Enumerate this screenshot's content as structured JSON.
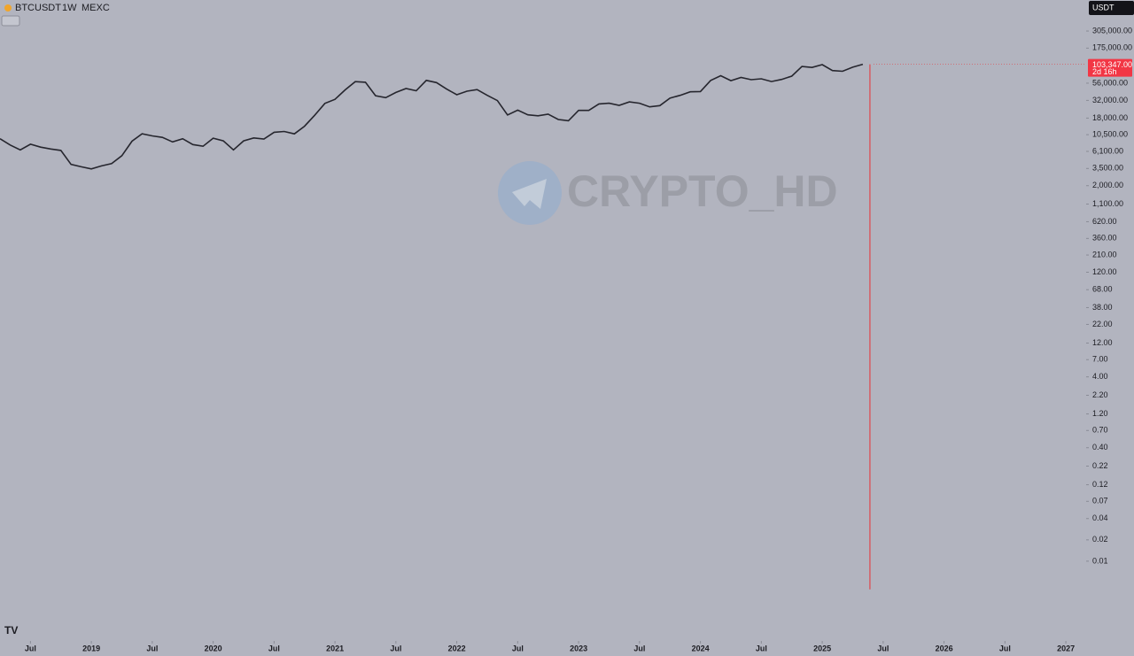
{
  "header": {
    "symbol": "BTCUSDT",
    "interval": "1W",
    "exchange": "MEXC",
    "currency": "USDT"
  },
  "watermark": "CRYPTO_HD",
  "chart_data": {
    "type": "line",
    "log_scale": true,
    "color": "#26262e",
    "wick_color": "#e0474c",
    "x": [
      "2018-04",
      "2018-05",
      "2018-06",
      "2018-07",
      "2018-08",
      "2018-09",
      "2018-10",
      "2018-11",
      "2018-12",
      "2019-01",
      "2019-02",
      "2019-03",
      "2019-04",
      "2019-05",
      "2019-06",
      "2019-07",
      "2019-08",
      "2019-09",
      "2019-10",
      "2019-11",
      "2019-12",
      "2020-01",
      "2020-02",
      "2020-03",
      "2020-04",
      "2020-05",
      "2020-06",
      "2020-07",
      "2020-08",
      "2020-09",
      "2020-10",
      "2020-11",
      "2020-12",
      "2021-01",
      "2021-02",
      "2021-03",
      "2021-04",
      "2021-05",
      "2021-06",
      "2021-07",
      "2021-08",
      "2021-09",
      "2021-10",
      "2021-11",
      "2021-12",
      "2022-01",
      "2022-02",
      "2022-03",
      "2022-04",
      "2022-05",
      "2022-06",
      "2022-07",
      "2022-08",
      "2022-09",
      "2022-10",
      "2022-11",
      "2022-12",
      "2023-01",
      "2023-02",
      "2023-03",
      "2023-04",
      "2023-05",
      "2023-06",
      "2023-07",
      "2023-08",
      "2023-09",
      "2023-10",
      "2023-11",
      "2023-12",
      "2024-01",
      "2024-02",
      "2024-03",
      "2024-04",
      "2024-05",
      "2024-06",
      "2024-07",
      "2024-08",
      "2024-09",
      "2024-10",
      "2024-11",
      "2024-12",
      "2025-01",
      "2025-02",
      "2025-03",
      "2025-04",
      "2025-05"
    ],
    "values": [
      9200,
      7500,
      6400,
      7700,
      7000,
      6600,
      6300,
      4000,
      3700,
      3450,
      3800,
      4100,
      5300,
      8500,
      10800,
      10100,
      9600,
      8300,
      9200,
      7600,
      7200,
      9350,
      8600,
      6400,
      8600,
      9450,
      9130,
      11350,
      11650,
      10780,
      13800,
      19700,
      29000,
      33100,
      45100,
      58800,
      57700,
      37300,
      35000,
      41500,
      47100,
      43800,
      61300,
      57000,
      46300,
      38500,
      43200,
      45500,
      37700,
      31800,
      19900,
      23300,
      20000,
      19400,
      20500,
      17200,
      16500,
      23100,
      23100,
      28500,
      29200,
      27200,
      30500,
      29200,
      25900,
      27000,
      34500,
      37700,
      42300,
      42600,
      61200,
      71300,
      60700,
      67500,
      62700,
      64600,
      59000,
      63300,
      70300,
      96400,
      93400,
      102400,
      84400,
      82500,
      94200,
      103347
    ],
    "last_low": 0.004,
    "last_price": 103347,
    "last_price_label": "103,347.00",
    "countdown": "2d 16h",
    "xlim": [
      "2018-04",
      "2027-03"
    ],
    "xticks": [
      {
        "value": "2018-07",
        "label": "Jul"
      },
      {
        "value": "2019-01",
        "label": "2019"
      },
      {
        "value": "2019-07",
        "label": "Jul"
      },
      {
        "value": "2020-01",
        "label": "2020"
      },
      {
        "value": "2020-07",
        "label": "Jul"
      },
      {
        "value": "2021-01",
        "label": "2021"
      },
      {
        "value": "2021-07",
        "label": "Jul"
      },
      {
        "value": "2022-01",
        "label": "2022"
      },
      {
        "value": "2022-07",
        "label": "Jul"
      },
      {
        "value": "2023-01",
        "label": "2023"
      },
      {
        "value": "2023-07",
        "label": "Jul"
      },
      {
        "value": "2024-01",
        "label": "2024"
      },
      {
        "value": "2024-07",
        "label": "Jul"
      },
      {
        "value": "2025-01",
        "label": "2025"
      },
      {
        "value": "2025-07",
        "label": "Jul"
      },
      {
        "value": "2026-01",
        "label": "2026"
      },
      {
        "value": "2026-07",
        "label": "Jul"
      },
      {
        "value": "2027-01",
        "label": "2027"
      }
    ],
    "ylim": [
      0.00084,
      836000
    ],
    "yticks": [
      {
        "value": 305000,
        "label": "305,000.00"
      },
      {
        "value": 175000,
        "label": "175,000.00"
      },
      {
        "value": 56000,
        "label": "56,000.00"
      },
      {
        "value": 32000,
        "label": "32,000.00"
      },
      {
        "value": 18000,
        "label": "18,000.00"
      },
      {
        "value": 10500,
        "label": "10,500.00"
      },
      {
        "value": 6100,
        "label": "6,100.00"
      },
      {
        "value": 3500,
        "label": "3,500.00"
      },
      {
        "value": 2000,
        "label": "2,000.00"
      },
      {
        "value": 1100,
        "label": "1,100.00"
      },
      {
        "value": 620,
        "label": "620.00"
      },
      {
        "value": 360,
        "label": "360.00"
      },
      {
        "value": 210,
        "label": "210.00"
      },
      {
        "value": 120,
        "label": "120.00"
      },
      {
        "value": 68,
        "label": "68.00"
      },
      {
        "value": 38,
        "label": "38.00"
      },
      {
        "value": 22,
        "label": "22.00"
      },
      {
        "value": 12,
        "label": "12.00"
      },
      {
        "value": 7,
        "label": "7.00"
      },
      {
        "value": 4,
        "label": "4.00"
      },
      {
        "value": 2.2,
        "label": "2.20"
      },
      {
        "value": 1.2,
        "label": "1.20"
      },
      {
        "value": 0.7,
        "label": "0.70"
      },
      {
        "value": 0.4,
        "label": "0.40"
      },
      0.22,
      0.12,
      0.07,
      0.04,
      0.02,
      0.01
    ]
  }
}
